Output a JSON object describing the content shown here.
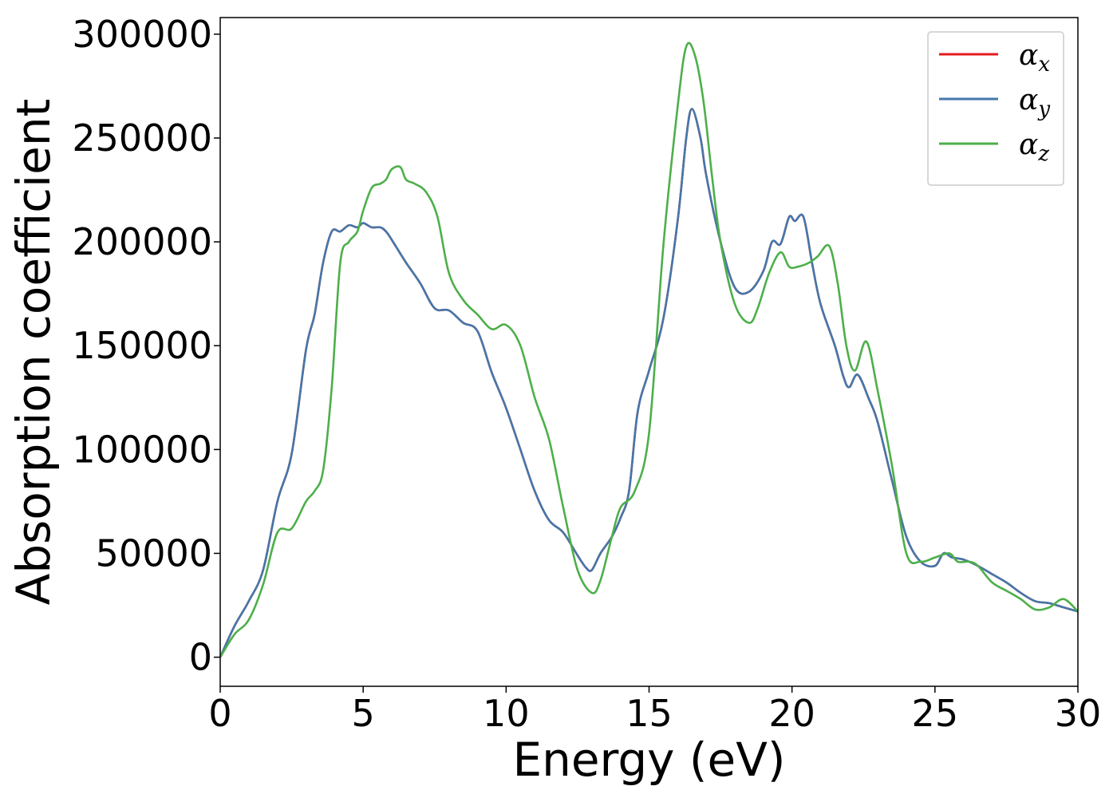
{
  "chart_data": {
    "type": "line",
    "title": "",
    "xlabel": "Energy (eV)",
    "ylabel": "Absorption coefficient",
    "xlim": [
      0,
      30
    ],
    "ylim": [
      -14000,
      308000
    ],
    "xticks": [
      "0",
      "5",
      "10",
      "15",
      "20",
      "25",
      "30"
    ],
    "yticks": [
      "0",
      "50000",
      "100000",
      "150000",
      "200000",
      "250000",
      "300000"
    ],
    "grid": false,
    "legend_position": "top-right",
    "series": [
      {
        "name": "α_x",
        "color": "#e41a1c",
        "x": [
          0,
          0.5,
          1,
          1.5,
          2,
          2.5,
          3,
          3.3,
          3.6,
          3.9,
          4.2,
          4.5,
          4.8,
          5,
          5.3,
          5.6,
          5.8,
          6,
          6.5,
          7,
          7.5,
          8,
          8.5,
          9,
          9.5,
          10,
          10.5,
          11,
          11.5,
          12,
          12.5,
          12.8,
          13,
          13.3,
          13.7,
          14,
          14.3,
          14.6,
          15,
          15.5,
          16,
          16.3,
          16.5,
          16.8,
          17,
          17.5,
          18,
          18.5,
          19,
          19.3,
          19.6,
          19.9,
          20.1,
          20.4,
          20.7,
          21,
          21.5,
          21.8,
          22,
          22.3,
          22.7,
          23,
          23.5,
          24,
          24.5,
          25,
          25.3,
          25.6,
          26,
          26.5,
          27,
          27.5,
          28,
          28.5,
          29,
          29.5,
          30
        ],
        "values": [
          0,
          15000,
          27000,
          42000,
          75000,
          98000,
          148000,
          165000,
          190000,
          205000,
          205000,
          208000,
          207000,
          209000,
          207000,
          207000,
          205000,
          201000,
          190000,
          180000,
          168000,
          167000,
          161000,
          157000,
          137000,
          120000,
          100000,
          80000,
          66000,
          60000,
          49000,
          43000,
          42000,
          50000,
          58000,
          67000,
          80000,
          118000,
          138000,
          163000,
          210000,
          250000,
          264000,
          250000,
          232000,
          200000,
          178000,
          176000,
          186000,
          200000,
          199000,
          212000,
          210000,
          212000,
          190000,
          170000,
          150000,
          135000,
          130000,
          136000,
          124000,
          113000,
          85000,
          58000,
          46000,
          44000,
          50000,
          48000,
          47000,
          44000,
          40000,
          36000,
          31000,
          27000,
          26000,
          24000,
          22000
        ]
      },
      {
        "name": "α_y",
        "color": "#4477aa",
        "x": [
          0,
          0.5,
          1,
          1.5,
          2,
          2.5,
          3,
          3.3,
          3.6,
          3.9,
          4.2,
          4.5,
          4.8,
          5,
          5.3,
          5.6,
          5.8,
          6,
          6.5,
          7,
          7.5,
          8,
          8.5,
          9,
          9.5,
          10,
          10.5,
          11,
          11.5,
          12,
          12.5,
          12.8,
          13,
          13.3,
          13.7,
          14,
          14.3,
          14.6,
          15,
          15.5,
          16,
          16.3,
          16.5,
          16.8,
          17,
          17.5,
          18,
          18.5,
          19,
          19.3,
          19.6,
          19.9,
          20.1,
          20.4,
          20.7,
          21,
          21.5,
          21.8,
          22,
          22.3,
          22.7,
          23,
          23.5,
          24,
          24.5,
          25,
          25.3,
          25.6,
          26,
          26.5,
          27,
          27.5,
          28,
          28.5,
          29,
          29.5,
          30
        ],
        "values": [
          0,
          15000,
          27000,
          42000,
          75000,
          98000,
          148000,
          165000,
          190000,
          205000,
          205000,
          208000,
          207000,
          209000,
          207000,
          207000,
          205000,
          201000,
          190000,
          180000,
          168000,
          167000,
          161000,
          157000,
          137000,
          120000,
          100000,
          80000,
          66000,
          60000,
          49000,
          43000,
          42000,
          50000,
          58000,
          67000,
          80000,
          118000,
          138000,
          163000,
          210000,
          250000,
          264000,
          250000,
          232000,
          200000,
          178000,
          176000,
          186000,
          200000,
          199000,
          212000,
          210000,
          212000,
          190000,
          170000,
          150000,
          135000,
          130000,
          136000,
          124000,
          113000,
          85000,
          58000,
          46000,
          44000,
          50000,
          48000,
          47000,
          44000,
          40000,
          36000,
          31000,
          27000,
          26000,
          24000,
          22000
        ]
      },
      {
        "name": "α_z",
        "color": "#4daf4a",
        "x": [
          0,
          0.5,
          1,
          1.5,
          2,
          2.5,
          3,
          3.3,
          3.6,
          3.9,
          4.2,
          4.5,
          4.8,
          5,
          5.3,
          5.6,
          5.8,
          6,
          6.3,
          6.5,
          6.8,
          7.2,
          7.6,
          8,
          8.5,
          9,
          9.5,
          10,
          10.5,
          11,
          11.5,
          12,
          12.5,
          13,
          13.3,
          13.7,
          14,
          14.5,
          15,
          15.5,
          16,
          16.3,
          16.6,
          16.9,
          17.2,
          17.5,
          18,
          18.5,
          18.8,
          19.2,
          19.6,
          19.9,
          20.2,
          20.6,
          20.9,
          21.3,
          21.6,
          21.9,
          22.2,
          22.6,
          23,
          23.5,
          24,
          24.5,
          25,
          25.5,
          25.8,
          26.2,
          26.5,
          27,
          27.5,
          28,
          28.5,
          29,
          29.5,
          30
        ],
        "values": [
          0,
          11000,
          18000,
          35000,
          60000,
          62000,
          75000,
          80000,
          90000,
          130000,
          190000,
          200000,
          205000,
          215000,
          226000,
          228000,
          230000,
          235000,
          236000,
          230000,
          228000,
          224000,
          212000,
          185000,
          172000,
          165000,
          158000,
          160000,
          150000,
          125000,
          105000,
          72000,
          42000,
          31000,
          37000,
          58000,
          72000,
          80000,
          108000,
          198000,
          265000,
          294000,
          290000,
          268000,
          232000,
          200000,
          170000,
          161000,
          168000,
          185000,
          195000,
          188000,
          188000,
          190000,
          193000,
          198000,
          180000,
          150000,
          138000,
          152000,
          128000,
          92000,
          50000,
          46000,
          48000,
          50000,
          46000,
          46000,
          44000,
          36000,
          32000,
          28000,
          23000,
          24000,
          28000,
          22000
        ]
      }
    ]
  }
}
